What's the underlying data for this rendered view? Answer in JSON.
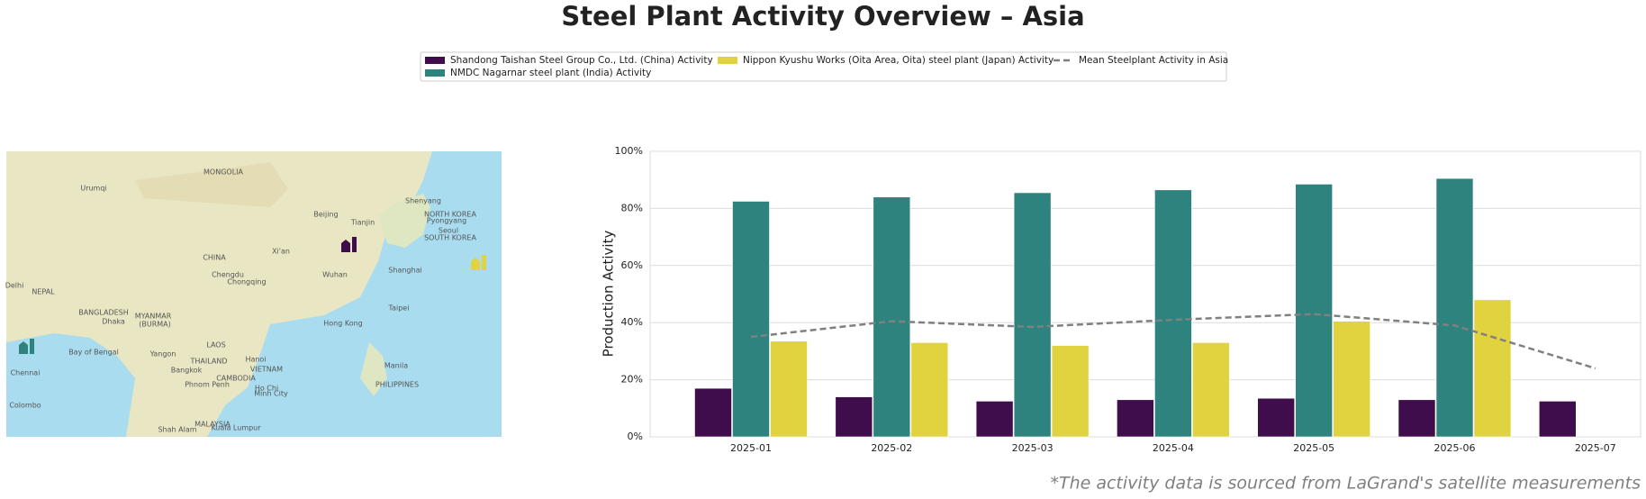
{
  "chart_data": {
    "type": "bar",
    "title": "Steel Plant Activity Overview – Asia",
    "ylabel": "Production Activity",
    "footnote": "*The activity data is sourced from LaGrand's satellite measurements",
    "categories": [
      "2025-01",
      "2025-02",
      "2025-03",
      "2025-04",
      "2025-05",
      "2025-06",
      "2025-07"
    ],
    "series": [
      {
        "name": "Shandong Taishan Steel Group Co., Ltd. (China) Activity",
        "color": "#3f0d4b",
        "values": [
          17,
          14,
          12.5,
          13,
          13.5,
          13,
          12.5
        ]
      },
      {
        "name": "NMDC Nagarnar steel plant (India) Activity",
        "color": "#2e837f",
        "values": [
          82.5,
          84,
          85.5,
          86.5,
          88.5,
          90.5,
          null
        ]
      },
      {
        "name": "Nippon Kyushu Works (Oita Area, Oita) steel plant (Japan) Activity",
        "color": "#e1d33f",
        "values": [
          33.5,
          33,
          32,
          33,
          40.5,
          48,
          null
        ]
      },
      {
        "name": "Mean Steelplant Activity in Asia",
        "type": "line",
        "color": "#808080",
        "dashed": true,
        "values": [
          35,
          40.5,
          38.5,
          41,
          43,
          39,
          24
        ]
      }
    ],
    "ylim": [
      0,
      100
    ],
    "yticks": [
      {
        "value": 0,
        "label": "0%"
      },
      {
        "value": 20,
        "label": "20%"
      },
      {
        "value": 40,
        "label": "40%"
      },
      {
        "value": 60,
        "label": "60%"
      },
      {
        "value": 80,
        "label": "80%"
      },
      {
        "value": 100,
        "label": "100%"
      }
    ],
    "grid": true,
    "legend": "top"
  },
  "map": {
    "labels": [
      "MONGOLIA",
      "Urumqi",
      "Beijing",
      "Tianjin",
      "Shenyang",
      "Pyongyang",
      "NORTH KOREA",
      "Seoul",
      "SOUTH KOREA",
      "CHINA",
      "Xi'an",
      "Chengdu",
      "Chongqing",
      "Wuhan",
      "Shanghai",
      "Delhi",
      "NEPAL",
      "BANGLADESH",
      "Dhaka",
      "MYANMAR",
      "(BURMA)",
      "Taipei",
      "Hong Kong",
      "Hanoi",
      "Yangon",
      "LAOS",
      "THAILAND",
      "Bangkok",
      "CAMBODIA",
      "VIETNAM",
      "Phnom Penh",
      "Ho Chi",
      "Minh City",
      "Manila",
      "PHILIPPINES",
      "Bay of Bengal",
      "Chennai",
      "Colombo",
      "MALAYSIA",
      "Kuala Lumpur",
      "Shah Alam"
    ]
  }
}
